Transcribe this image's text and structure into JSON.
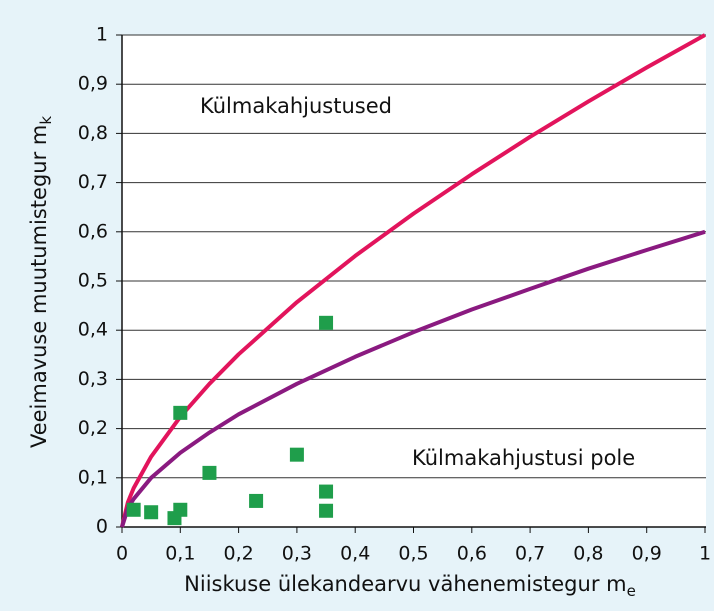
{
  "chart_data": {
    "type": "line",
    "x_label": "Niiskuse ülekandearvu vähenemistegur m",
    "x_label_sub": "e",
    "y_label": "Veeimavuse muutumistegur m",
    "y_label_sub": "k",
    "annotations": [
      "Külmakahjustused",
      "Külmakahjustusi pole"
    ],
    "xlim": [
      0,
      1
    ],
    "ylim": [
      0,
      1
    ],
    "xticks": [
      0,
      {
        "value": 0.1,
        "label": "0,1"
      },
      {
        "value": 0.2,
        "label": "0,2"
      },
      {
        "value": 0.3,
        "label": "0,3"
      },
      {
        "value": 0.4,
        "label": "0,4"
      },
      {
        "value": 0.5,
        "label": "0,5"
      },
      {
        "value": 0.6,
        "label": "0,6"
      },
      {
        "value": 0.7,
        "label": "0,7"
      },
      {
        "value": 0.8,
        "label": "0,8"
      },
      {
        "value": 0.9,
        "label": "0,9"
      },
      1
    ],
    "yticks": [
      0,
      {
        "value": 0.1,
        "label": "0,1"
      },
      {
        "value": 0.2,
        "label": "0,2"
      },
      {
        "value": 0.3,
        "label": "0,3"
      },
      {
        "value": 0.4,
        "label": "0,4"
      },
      {
        "value": 0.5,
        "label": "0,5"
      },
      {
        "value": 0.6,
        "label": "0,6"
      },
      {
        "value": 0.7,
        "label": "0,7"
      },
      {
        "value": 0.8,
        "label": "0,8"
      },
      {
        "value": 0.9,
        "label": "0,9"
      },
      1
    ],
    "grid": true,
    "x": [
      0,
      0.01,
      0.02,
      0.05,
      0.1,
      0.15,
      0.2,
      0.3,
      0.4,
      0.5,
      0.6,
      0.7,
      0.8,
      0.9,
      1
    ],
    "series": [
      {
        "color": "#e2145c",
        "values": [
          0,
          0.05,
          0.079,
          0.143,
          0.224,
          0.291,
          0.351,
          0.457,
          0.551,
          0.637,
          0.717,
          0.793,
          0.865,
          0.934,
          1
        ]
      },
      {
        "color": "#8a1a80",
        "values": [
          0,
          0.038,
          0.057,
          0.1,
          0.151,
          0.192,
          0.229,
          0.291,
          0.346,
          0.396,
          0.442,
          0.484,
          0.525,
          0.563,
          0.6
        ]
      }
    ],
    "points": {
      "type": "scatter",
      "color": "#1f9e4b",
      "x": [
        0.02,
        0.05,
        0.09,
        0.1,
        0.1,
        0.15,
        0.23,
        0.3,
        0.35,
        0.35,
        0.35
      ],
      "y": [
        0.035,
        0.03,
        0.018,
        0.035,
        0.232,
        0.11,
        0.053,
        0.147,
        0.415,
        0.072,
        0.033
      ]
    }
  }
}
